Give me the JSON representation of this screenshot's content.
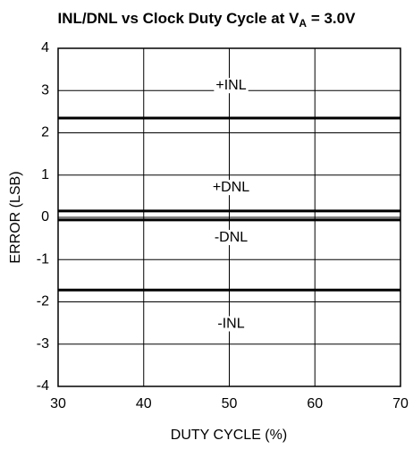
{
  "chart_data": {
    "type": "line",
    "title": "INL/DNL vs Clock Duty Cycle at V",
    "title_subscript": "A",
    "title_suffix": " = 3.0V",
    "x_label": "DUTY CYCLE (%)",
    "y_label": "ERROR (LSB)",
    "x": [
      30,
      70
    ],
    "series": [
      {
        "name": "+INL",
        "color": "#000000",
        "values": [
          2.35,
          2.35
        ]
      },
      {
        "name": "+DNL",
        "color": "#000000",
        "values": [
          0.15,
          0.15
        ]
      },
      {
        "name": "-DNL",
        "color": "#000000",
        "values": [
          -0.06,
          -0.06
        ]
      },
      {
        "name": "-INL",
        "color": "#000000",
        "values": [
          -1.72,
          -1.72
        ]
      }
    ],
    "xlim": [
      30,
      70
    ],
    "xticks": [
      30,
      40,
      50,
      60,
      70
    ],
    "ylim": [
      -4,
      4
    ],
    "yticks": [
      -4,
      -3,
      -2,
      -1,
      0,
      1,
      2,
      3,
      4
    ],
    "grid": true
  }
}
